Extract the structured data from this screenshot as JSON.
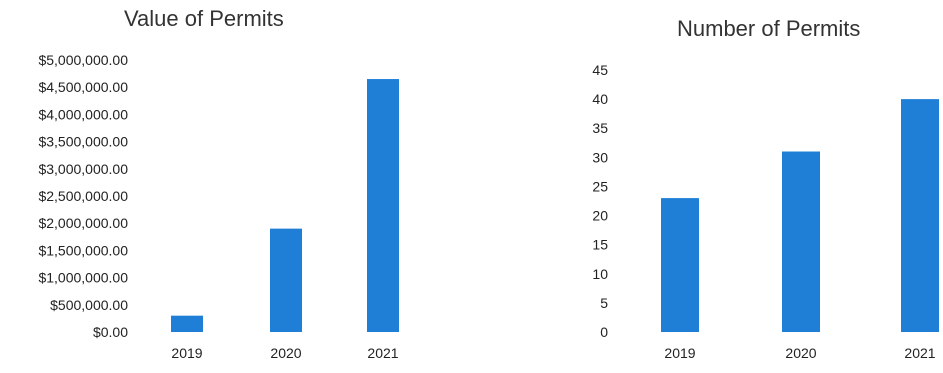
{
  "chart_data": [
    {
      "type": "bar",
      "title": "Value of Permits",
      "categories": [
        "2019",
        "2020",
        "2021"
      ],
      "values": [
        300000,
        1900000,
        4650000
      ],
      "ylim": [
        0,
        5000000
      ],
      "yticks": [
        "$0.00",
        "$500,000.00",
        "$1,000,000.00",
        "$1,500,000.00",
        "$2,000,000.00",
        "$2,500,000.00",
        "$3,000,000.00",
        "$3,500,000.00",
        "$4,000,000.00",
        "$4,500,000.00",
        "$5,000,000.00"
      ],
      "xlabel": "",
      "ylabel": "",
      "grid": false,
      "bar_color": "#1f7fd6"
    },
    {
      "type": "bar",
      "title": "Number of Permits",
      "categories": [
        "2019",
        "2020",
        "2021"
      ],
      "values": [
        23,
        31,
        40
      ],
      "ylim": [
        0,
        45
      ],
      "yticks": [
        "0",
        "5",
        "10",
        "15",
        "20",
        "25",
        "30",
        "35",
        "40",
        "45"
      ],
      "xlabel": "",
      "ylabel": "",
      "grid": false,
      "bar_color": "#1f7fd6"
    }
  ]
}
